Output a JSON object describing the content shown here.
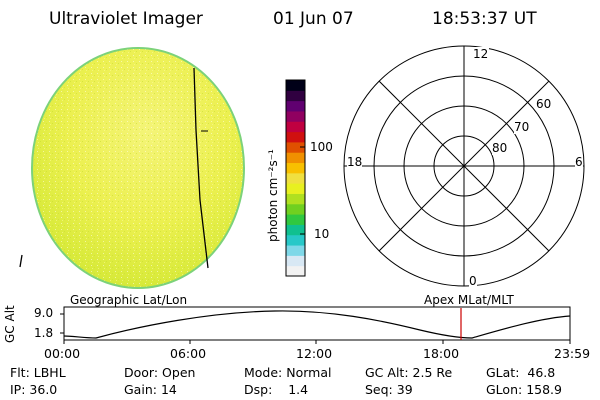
{
  "header": {
    "title": "Ultraviolet Imager",
    "date": "01 Jun 07",
    "time": "18:53:37 UT"
  },
  "colorbar": {
    "label": "photon cm⁻²s⁻¹",
    "ticks": [
      "100",
      "10"
    ],
    "colors": [
      "#f2f2f2",
      "#d8e8f4",
      "#7fd8e8",
      "#28c8c8",
      "#10c090",
      "#30c840",
      "#70d020",
      "#b0e020",
      "#e8f020",
      "#f0e040",
      "#f8c000",
      "#f09000",
      "#e05000",
      "#d01010",
      "#c00040",
      "#900060",
      "#600070",
      "#300040",
      "#000018"
    ]
  },
  "image_panel": {
    "fill_color": "#e8f04a",
    "edge_color": "#7cd27a"
  },
  "polar_plot": {
    "mlt_labels": [
      "12",
      "18",
      "6",
      "0"
    ],
    "lat_labels": [
      "60",
      "70",
      "80"
    ]
  },
  "orbit": {
    "left_label": "Geographic Lat/Lon",
    "right_label": "Apex MLat/MLT",
    "axis_title": "GC Alt",
    "y_ticks": [
      "9.0",
      "1.8"
    ],
    "x_ticks": [
      "00:00",
      "06:00",
      "12:00",
      "18:00",
      "23:59"
    ],
    "marker_color": "#cc0000"
  },
  "footer": {
    "row1": [
      {
        "label": "Flt:",
        "value": "LBHL"
      },
      {
        "label": "Door:",
        "value": "Open"
      },
      {
        "label": "Mode:",
        "value": "Normal"
      },
      {
        "label": "GC Alt:",
        "value": "2.5 Re"
      },
      {
        "label": "GLat:",
        "value": "46.8"
      }
    ],
    "row2": [
      {
        "label": "IP:",
        "value": "36.0"
      },
      {
        "label": "Gain:",
        "value": "14"
      },
      {
        "label": "Dsp:",
        "value": "1.4"
      },
      {
        "label": "Seq:",
        "value": "39"
      },
      {
        "label": "GLon:",
        "value": "158.9"
      }
    ]
  }
}
